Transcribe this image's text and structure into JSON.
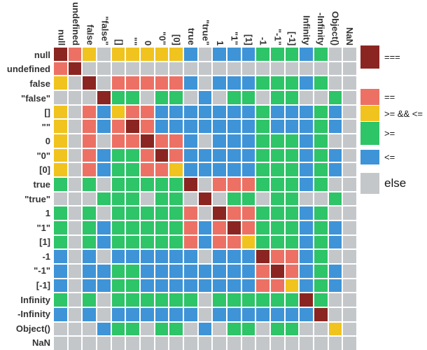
{
  "chart_data": {
    "type": "heatmap",
    "labels": [
      "null",
      "undefined",
      "false",
      "\"false\"",
      "[]",
      "\"\"",
      "0",
      "\"0\"",
      "[0]",
      "true",
      "\"true\"",
      "1",
      "\"1\"",
      "[1]",
      "-1",
      "\"-1\"",
      "[-1]",
      "Infinity",
      "-Infinity",
      "Object()",
      "NaN"
    ],
    "legend": [
      {
        "code": "E",
        "label": "==="
      },
      {
        "code": "Q",
        "label": "=="
      },
      {
        "code": "B",
        "label": ">= && <="
      },
      {
        "code": "G",
        "label": ">="
      },
      {
        "code": "L",
        "label": "<="
      },
      {
        "code": "N",
        "label": "else"
      }
    ],
    "colors": {
      "E": "#8b2521",
      "Q": "#ec7164",
      "B": "#f0c31f",
      "G": "#2ec468",
      "L": "#3e94d7",
      "N": "#c4c7ca"
    },
    "matrix": [
      "EQBNBBBBBLNLLLGGGLGNN",
      "QENNNNNNNNNNNNNNNNNNN",
      "BNENQQQQQLNLLLGGGLGNN",
      "NNNEGGNGGNLNGGNGGNNGN",
      "BNQLBQQLLLLLLLGLLLGLN",
      "BNQLQEQLLLLLLLGLLLGLN",
      "BNQNQQEQQLNLLLGGGLGNN",
      "BNQLGGQEQLLLLLGGGLGLN",
      "BNQLGGQQBLLLLLGGGLGLN",
      "GNGNGGGGGENQQQGGGLGNN",
      "NNNGGGNGGNENGGNGGNNGN",
      "GNGNGGGGGQNEQQGGGLGNN",
      "GNGLGGGGGQLQEQGGGLGLN",
      "GNGLGGGGGQLQQBGGGLGLN",
      "LNLNLLLLLLNLLLEQQLGNN",
      "LNLLGGLLLLLLLLQEQLGLN",
      "LNLLGGLLLLLLLLQQBLGLN",
      "GNGNGGGGGGNGGGGGGEGNN",
      "LNLNLLLLLLNLLLLLLLENN",
      "NNNLGGNGGNLNGGNGGNNBN",
      "NNNNNNNNNNNNNNNNNNNNN"
    ]
  }
}
